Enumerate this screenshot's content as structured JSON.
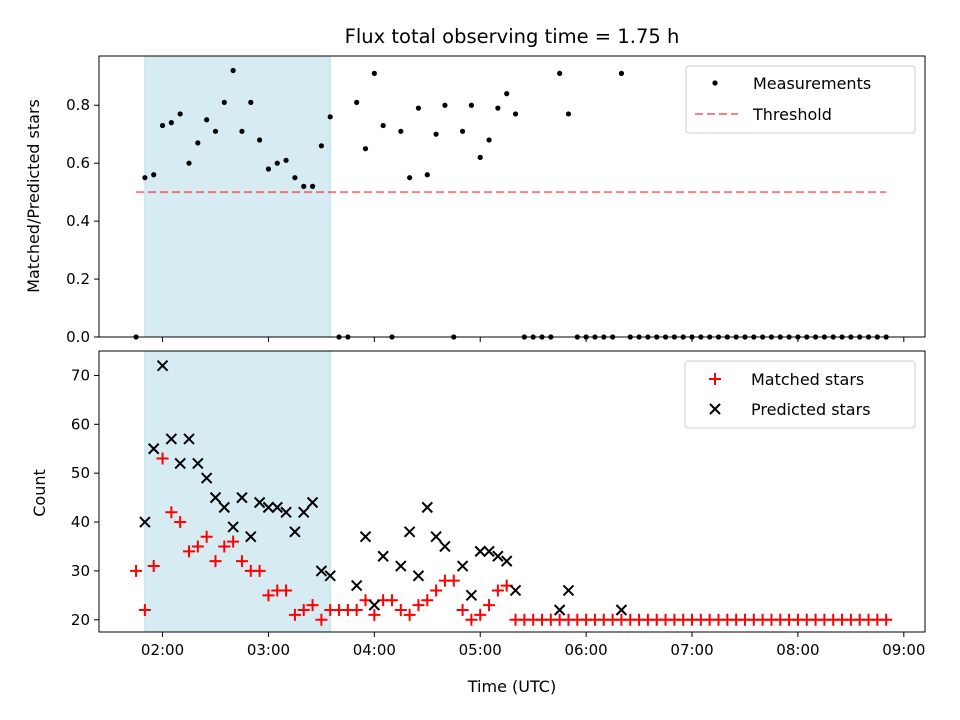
{
  "chart_data": {
    "type": "scatter",
    "title": "Flux total observing time = 1.75 h",
    "xlabel": "Time (UTC)",
    "x_ticks": [
      "02:00",
      "03:00",
      "04:00",
      "05:00",
      "06:00",
      "07:00",
      "08:00",
      "09:00"
    ],
    "x_range_hours": [
      1.4,
      9.2
    ],
    "highlight_span": {
      "start": "01:50",
      "end": "03:35",
      "color": "#add8e6"
    },
    "colors": {
      "measurements": "#000000",
      "threshold": "#ff0000",
      "matched": "#ff0000",
      "predicted": "#000000"
    },
    "panels": [
      {
        "ylabel": "Matched/Predicted stars",
        "ylim": [
          0,
          0.97
        ],
        "y_ticks": [
          "0.0",
          "0.2",
          "0.4",
          "0.6",
          "0.8"
        ],
        "legend_position": "top-right",
        "series": [
          {
            "name": "Measurements",
            "type": "scatter",
            "points": [
              [
                "01:45",
                0.0
              ],
              [
                "01:50",
                0.55
              ],
              [
                "01:55",
                0.56
              ],
              [
                "02:00",
                0.73
              ],
              [
                "02:05",
                0.74
              ],
              [
                "02:10",
                0.77
              ],
              [
                "02:15",
                0.6
              ],
              [
                "02:20",
                0.67
              ],
              [
                "02:25",
                0.75
              ],
              [
                "02:30",
                0.71
              ],
              [
                "02:35",
                0.81
              ],
              [
                "02:40",
                0.92
              ],
              [
                "02:45",
                0.71
              ],
              [
                "02:50",
                0.81
              ],
              [
                "02:55",
                0.68
              ],
              [
                "03:00",
                0.58
              ],
              [
                "03:05",
                0.6
              ],
              [
                "03:10",
                0.61
              ],
              [
                "03:15",
                0.55
              ],
              [
                "03:20",
                0.52
              ],
              [
                "03:25",
                0.52
              ],
              [
                "03:30",
                0.66
              ],
              [
                "03:35",
                0.76
              ],
              [
                "03:40",
                0.0
              ],
              [
                "03:45",
                0.0
              ],
              [
                "03:50",
                0.81
              ],
              [
                "03:55",
                0.65
              ],
              [
                "04:00",
                0.91
              ],
              [
                "04:05",
                0.73
              ],
              [
                "04:10",
                0.0
              ],
              [
                "04:15",
                0.71
              ],
              [
                "04:20",
                0.55
              ],
              [
                "04:25",
                0.79
              ],
              [
                "04:30",
                0.56
              ],
              [
                "04:35",
                0.7
              ],
              [
                "04:40",
                0.8
              ],
              [
                "04:45",
                0.0
              ],
              [
                "04:50",
                0.71
              ],
              [
                "04:55",
                0.8
              ],
              [
                "05:00",
                0.62
              ],
              [
                "05:05",
                0.68
              ],
              [
                "05:10",
                0.79
              ],
              [
                "05:15",
                0.84
              ],
              [
                "05:20",
                0.77
              ],
              [
                "05:25",
                0.0
              ],
              [
                "05:30",
                0.0
              ],
              [
                "05:35",
                0.0
              ],
              [
                "05:40",
                0.0
              ],
              [
                "05:45",
                0.91
              ],
              [
                "05:50",
                0.77
              ],
              [
                "05:55",
                0.0
              ],
              [
                "06:00",
                0.0
              ],
              [
                "06:05",
                0.0
              ],
              [
                "06:10",
                0.0
              ],
              [
                "06:15",
                0.0
              ],
              [
                "06:20",
                0.91
              ],
              [
                "06:25",
                0.0
              ],
              [
                "06:30",
                0.0
              ],
              [
                "06:35",
                0.0
              ],
              [
                "06:40",
                0.0
              ],
              [
                "06:45",
                0.0
              ],
              [
                "06:50",
                0.0
              ],
              [
                "06:55",
                0.0
              ],
              [
                "07:00",
                0.0
              ],
              [
                "07:05",
                0.0
              ],
              [
                "07:10",
                0.0
              ],
              [
                "07:15",
                0.0
              ],
              [
                "07:20",
                0.0
              ],
              [
                "07:25",
                0.0
              ],
              [
                "07:30",
                0.0
              ],
              [
                "07:35",
                0.0
              ],
              [
                "07:40",
                0.0
              ],
              [
                "07:45",
                0.0
              ],
              [
                "07:50",
                0.0
              ],
              [
                "07:55",
                0.0
              ],
              [
                "08:00",
                0.0
              ],
              [
                "08:05",
                0.0
              ],
              [
                "08:10",
                0.0
              ],
              [
                "08:15",
                0.0
              ],
              [
                "08:20",
                0.0
              ],
              [
                "08:25",
                0.0
              ],
              [
                "08:30",
                0.0
              ],
              [
                "08:35",
                0.0
              ],
              [
                "08:40",
                0.0
              ],
              [
                "08:45",
                0.0
              ],
              [
                "08:50",
                0.0
              ]
            ]
          },
          {
            "name": "Threshold",
            "type": "line",
            "style": "dashed",
            "points": [
              [
                "01:45",
                0.5
              ],
              [
                "08:50",
                0.5
              ]
            ]
          }
        ]
      },
      {
        "ylabel": "Count",
        "ylim": [
          17.5,
          75
        ],
        "y_ticks": [
          "20",
          "30",
          "40",
          "50",
          "60",
          "70"
        ],
        "legend_position": "top-right",
        "series": [
          {
            "name": "Matched stars",
            "type": "scatter",
            "marker": "plus",
            "points": [
              [
                "01:45",
                30
              ],
              [
                "01:50",
                22
              ],
              [
                "01:55",
                31
              ],
              [
                "02:00",
                53
              ],
              [
                "02:05",
                42
              ],
              [
                "02:10",
                40
              ],
              [
                "02:15",
                34
              ],
              [
                "02:20",
                35
              ],
              [
                "02:25",
                37
              ],
              [
                "02:30",
                32
              ],
              [
                "02:35",
                35
              ],
              [
                "02:40",
                36
              ],
              [
                "02:45",
                32
              ],
              [
                "02:50",
                30
              ],
              [
                "02:55",
                30
              ],
              [
                "03:00",
                25
              ],
              [
                "03:05",
                26
              ],
              [
                "03:10",
                26
              ],
              [
                "03:15",
                21
              ],
              [
                "03:20",
                22
              ],
              [
                "03:25",
                23
              ],
              [
                "03:30",
                20
              ],
              [
                "03:35",
                22
              ],
              [
                "03:40",
                22
              ],
              [
                "03:45",
                22
              ],
              [
                "03:50",
                22
              ],
              [
                "03:55",
                24
              ],
              [
                "04:00",
                21
              ],
              [
                "04:05",
                24
              ],
              [
                "04:10",
                24
              ],
              [
                "04:15",
                22
              ],
              [
                "04:20",
                21
              ],
              [
                "04:25",
                23
              ],
              [
                "04:30",
                24
              ],
              [
                "04:35",
                26
              ],
              [
                "04:40",
                28
              ],
              [
                "04:45",
                28
              ],
              [
                "04:50",
                22
              ],
              [
                "04:55",
                20
              ],
              [
                "05:00",
                21
              ],
              [
                "05:05",
                23
              ],
              [
                "05:10",
                26
              ],
              [
                "05:15",
                27
              ],
              [
                "05:20",
                20
              ],
              [
                "05:25",
                20
              ],
              [
                "05:30",
                20
              ],
              [
                "05:35",
                20
              ],
              [
                "05:40",
                20
              ],
              [
                "05:45",
                20
              ],
              [
                "05:50",
                20
              ],
              [
                "05:55",
                20
              ],
              [
                "06:00",
                20
              ],
              [
                "06:05",
                20
              ],
              [
                "06:10",
                20
              ],
              [
                "06:15",
                20
              ],
              [
                "06:20",
                20
              ],
              [
                "06:25",
                20
              ],
              [
                "06:30",
                20
              ],
              [
                "06:35",
                20
              ],
              [
                "06:40",
                20
              ],
              [
                "06:45",
                20
              ],
              [
                "06:50",
                20
              ],
              [
                "06:55",
                20
              ],
              [
                "07:00",
                20
              ],
              [
                "07:05",
                20
              ],
              [
                "07:10",
                20
              ],
              [
                "07:15",
                20
              ],
              [
                "07:20",
                20
              ],
              [
                "07:25",
                20
              ],
              [
                "07:30",
                20
              ],
              [
                "07:35",
                20
              ],
              [
                "07:40",
                20
              ],
              [
                "07:45",
                20
              ],
              [
                "07:50",
                20
              ],
              [
                "07:55",
                20
              ],
              [
                "08:00",
                20
              ],
              [
                "08:05",
                20
              ],
              [
                "08:10",
                20
              ],
              [
                "08:15",
                20
              ],
              [
                "08:20",
                20
              ],
              [
                "08:25",
                20
              ],
              [
                "08:30",
                20
              ],
              [
                "08:35",
                20
              ],
              [
                "08:40",
                20
              ],
              [
                "08:45",
                20
              ],
              [
                "08:50",
                20
              ]
            ]
          },
          {
            "name": "Predicted stars",
            "type": "scatter",
            "marker": "x",
            "points": [
              [
                "01:50",
                40
              ],
              [
                "01:55",
                55
              ],
              [
                "02:00",
                72
              ],
              [
                "02:05",
                57
              ],
              [
                "02:10",
                52
              ],
              [
                "02:15",
                57
              ],
              [
                "02:20",
                52
              ],
              [
                "02:25",
                49
              ],
              [
                "02:30",
                45
              ],
              [
                "02:35",
                43
              ],
              [
                "02:40",
                39
              ],
              [
                "02:45",
                45
              ],
              [
                "02:50",
                37
              ],
              [
                "02:55",
                44
              ],
              [
                "03:00",
                43
              ],
              [
                "03:05",
                43
              ],
              [
                "03:10",
                42
              ],
              [
                "03:15",
                38
              ],
              [
                "03:20",
                42
              ],
              [
                "03:25",
                44
              ],
              [
                "03:30",
                30
              ],
              [
                "03:35",
                29
              ],
              [
                "03:50",
                27
              ],
              [
                "03:55",
                37
              ],
              [
                "04:00",
                23
              ],
              [
                "04:05",
                33
              ],
              [
                "04:15",
                31
              ],
              [
                "04:20",
                38
              ],
              [
                "04:25",
                29
              ],
              [
                "04:30",
                43
              ],
              [
                "04:35",
                37
              ],
              [
                "04:40",
                35
              ],
              [
                "04:50",
                31
              ],
              [
                "04:55",
                25
              ],
              [
                "05:00",
                34
              ],
              [
                "05:05",
                34
              ],
              [
                "05:10",
                33
              ],
              [
                "05:15",
                32
              ],
              [
                "05:20",
                26
              ],
              [
                "05:45",
                22
              ],
              [
                "05:50",
                26
              ],
              [
                "06:20",
                22
              ]
            ]
          }
        ]
      }
    ]
  }
}
